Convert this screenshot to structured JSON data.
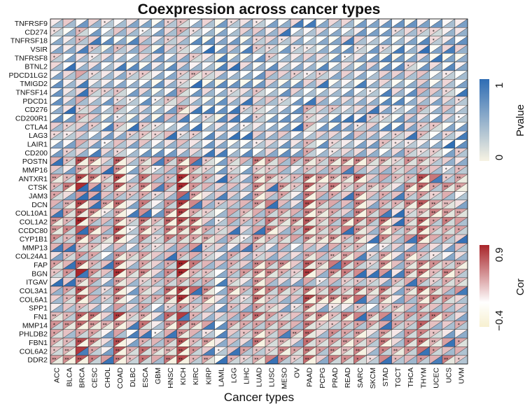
{
  "chart_data": {
    "type": "heatmap",
    "title": "Coexpression across cancer types",
    "xlabel": "Cancer types",
    "ylabel": "",
    "rows": [
      "TNFRSF9",
      "CD274",
      "TNFRSF18",
      "VSIR",
      "TNFRSF8",
      "BTNL2",
      "PDCD1LG2",
      "TMIGD2",
      "TNFSF14",
      "PDCD1",
      "CD276",
      "CD200R1",
      "CTLA4",
      "LAG3",
      "LAIR1",
      "CD200",
      "POSTN",
      "MMP16",
      "ANTXR1",
      "CTSK",
      "JAM3",
      "DCN",
      "COL10A1",
      "COL1A2",
      "CCDC80",
      "CYP1B1",
      "MMP13",
      "COL24A1",
      "FAP",
      "BGN",
      "ITGAV",
      "COL3A1",
      "COL6A1",
      "SPP1",
      "FN1",
      "MMP14",
      "PHLDB2",
      "FBN1",
      "COL6A2",
      "DDR2"
    ],
    "columns": [
      "ACC",
      "BLCA",
      "BRCA",
      "CESC",
      "CHOL",
      "COAD",
      "DLBC",
      "ESCA",
      "GBM",
      "HNSC",
      "KICH",
      "KIRC",
      "KIRP",
      "LAML",
      "LGG",
      "LIHC",
      "LUAD",
      "LUSC",
      "MESO",
      "OV",
      "PAAD",
      "PCPG",
      "PRAD",
      "READ",
      "SARC",
      "SKCM",
      "STAD",
      "TGCT",
      "THCA",
      "THYM",
      "UCEC",
      "UCS",
      "UVM"
    ],
    "column_strength": [
      0.45,
      0.5,
      0.75,
      0.55,
      0.35,
      0.7,
      0.3,
      0.55,
      0.3,
      0.55,
      0.8,
      0.55,
      0.4,
      0.2,
      0.45,
      0.35,
      0.55,
      0.5,
      0.45,
      0.4,
      0.7,
      0.45,
      0.5,
      0.5,
      0.6,
      0.4,
      0.5,
      0.35,
      0.5,
      0.65,
      0.5,
      0.45,
      0.4
    ],
    "row_strength": [
      0.25,
      0.3,
      0.25,
      0.3,
      0.25,
      0.2,
      0.35,
      0.25,
      0.3,
      0.3,
      0.35,
      0.3,
      0.3,
      0.35,
      0.35,
      0.35,
      0.75,
      0.55,
      0.8,
      0.8,
      0.6,
      0.75,
      0.7,
      0.85,
      0.75,
      0.7,
      0.55,
      0.55,
      0.85,
      0.85,
      0.6,
      0.85,
      0.8,
      0.55,
      0.8,
      0.75,
      0.65,
      0.8,
      0.75,
      0.8
    ],
    "legends": [
      {
        "title": "Pvalue",
        "min_label": "0",
        "max_label": "1",
        "colors": [
          "#f7f3e3",
          "#2f6db4"
        ]
      },
      {
        "title": "Cor",
        "min_label": "−0.4",
        "max_label": "0.9",
        "colors": [
          "#f7f0d0",
          "#ffffff",
          "#a8252a"
        ]
      }
    ]
  }
}
